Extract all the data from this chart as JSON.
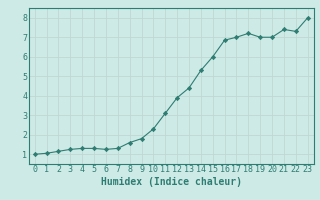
{
  "x": [
    0,
    1,
    2,
    3,
    4,
    5,
    6,
    7,
    8,
    9,
    10,
    11,
    12,
    13,
    14,
    15,
    16,
    17,
    18,
    19,
    20,
    21,
    22,
    23
  ],
  "y": [
    1.0,
    1.05,
    1.15,
    1.25,
    1.3,
    1.3,
    1.25,
    1.3,
    1.6,
    1.8,
    2.3,
    3.1,
    3.9,
    4.4,
    5.3,
    6.0,
    6.85,
    7.0,
    7.2,
    7.0,
    7.0,
    7.4,
    7.3,
    8.0
  ],
  "line_color": "#2e7d72",
  "marker": "D",
  "marker_size": 2.2,
  "bg_color": "#ceeae6",
  "grid_color": "#c0d8d4",
  "tick_color": "#2e7d72",
  "xlabel": "Humidex (Indice chaleur)",
  "xlabel_fontsize": 7,
  "xlim": [
    -0.5,
    23.5
  ],
  "ylim": [
    0.5,
    8.5
  ],
  "yticks": [
    1,
    2,
    3,
    4,
    5,
    6,
    7,
    8
  ],
  "xticks": [
    0,
    1,
    2,
    3,
    4,
    5,
    6,
    7,
    8,
    9,
    10,
    11,
    12,
    13,
    14,
    15,
    16,
    17,
    18,
    19,
    20,
    21,
    22,
    23
  ],
  "spine_color": "#2e7d72",
  "tick_fontsize": 6.0
}
